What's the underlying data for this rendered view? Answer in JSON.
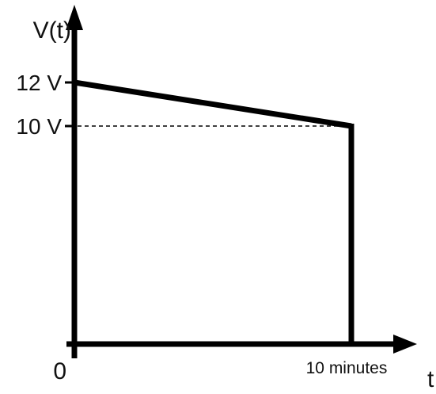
{
  "chart_data": {
    "type": "line",
    "ylabel": "V(t)",
    "xlabel": "t",
    "origin_label": "0",
    "x_tick_labels": [
      "10 minutes"
    ],
    "y_tick_labels": [
      "12 V",
      "10 V"
    ],
    "x": [
      0,
      10
    ],
    "series": [
      {
        "values": [
          12,
          10
        ]
      }
    ],
    "drop_to_zero_at_x": 10,
    "reference_line": {
      "y": 10,
      "style": "dashed"
    },
    "xlim": [
      0,
      12
    ],
    "ylim": [
      0,
      15
    ],
    "grid": false,
    "colors": {
      "line": "#000000",
      "axis": "#000000"
    }
  }
}
